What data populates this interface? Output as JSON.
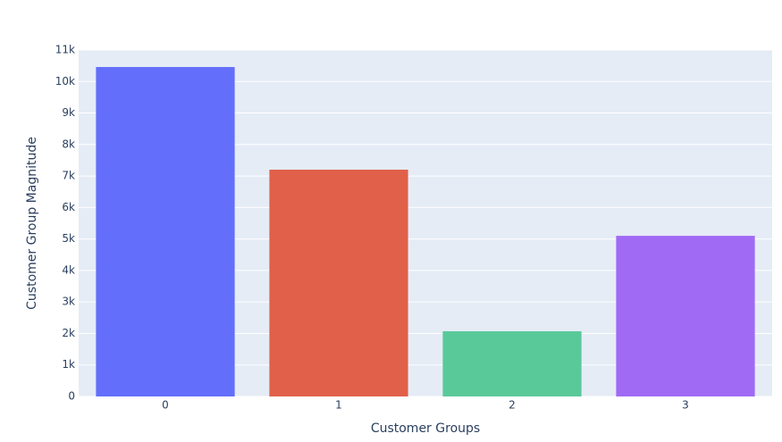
{
  "chart_data": {
    "type": "bar",
    "x_label": "Customer Groups",
    "y_label": "Customer Group Magnitude",
    "categories": [
      "0",
      "1",
      "2",
      "3"
    ],
    "values": [
      10460,
      7200,
      2070,
      5100
    ],
    "colors": [
      "#636efa",
      "#e0604a",
      "#5ac999",
      "#a06af5"
    ],
    "ylim": [
      0,
      11000
    ],
    "yticks": [
      0,
      {
        "value": 1000,
        "label": "1k"
      },
      {
        "value": 2000,
        "label": "2k"
      },
      {
        "value": 3000,
        "label": "3k"
      },
      {
        "value": 4000,
        "label": "4k"
      },
      {
        "value": 5000,
        "label": "5k"
      },
      {
        "value": 6000,
        "label": "6k"
      },
      {
        "value": 7000,
        "label": "7k"
      },
      {
        "value": 8000,
        "label": "8k"
      },
      {
        "value": 9000,
        "label": "9k"
      },
      {
        "value": 10000,
        "label": "10k"
      },
      {
        "value": 11000,
        "label": "11k"
      }
    ],
    "grid": true
  }
}
